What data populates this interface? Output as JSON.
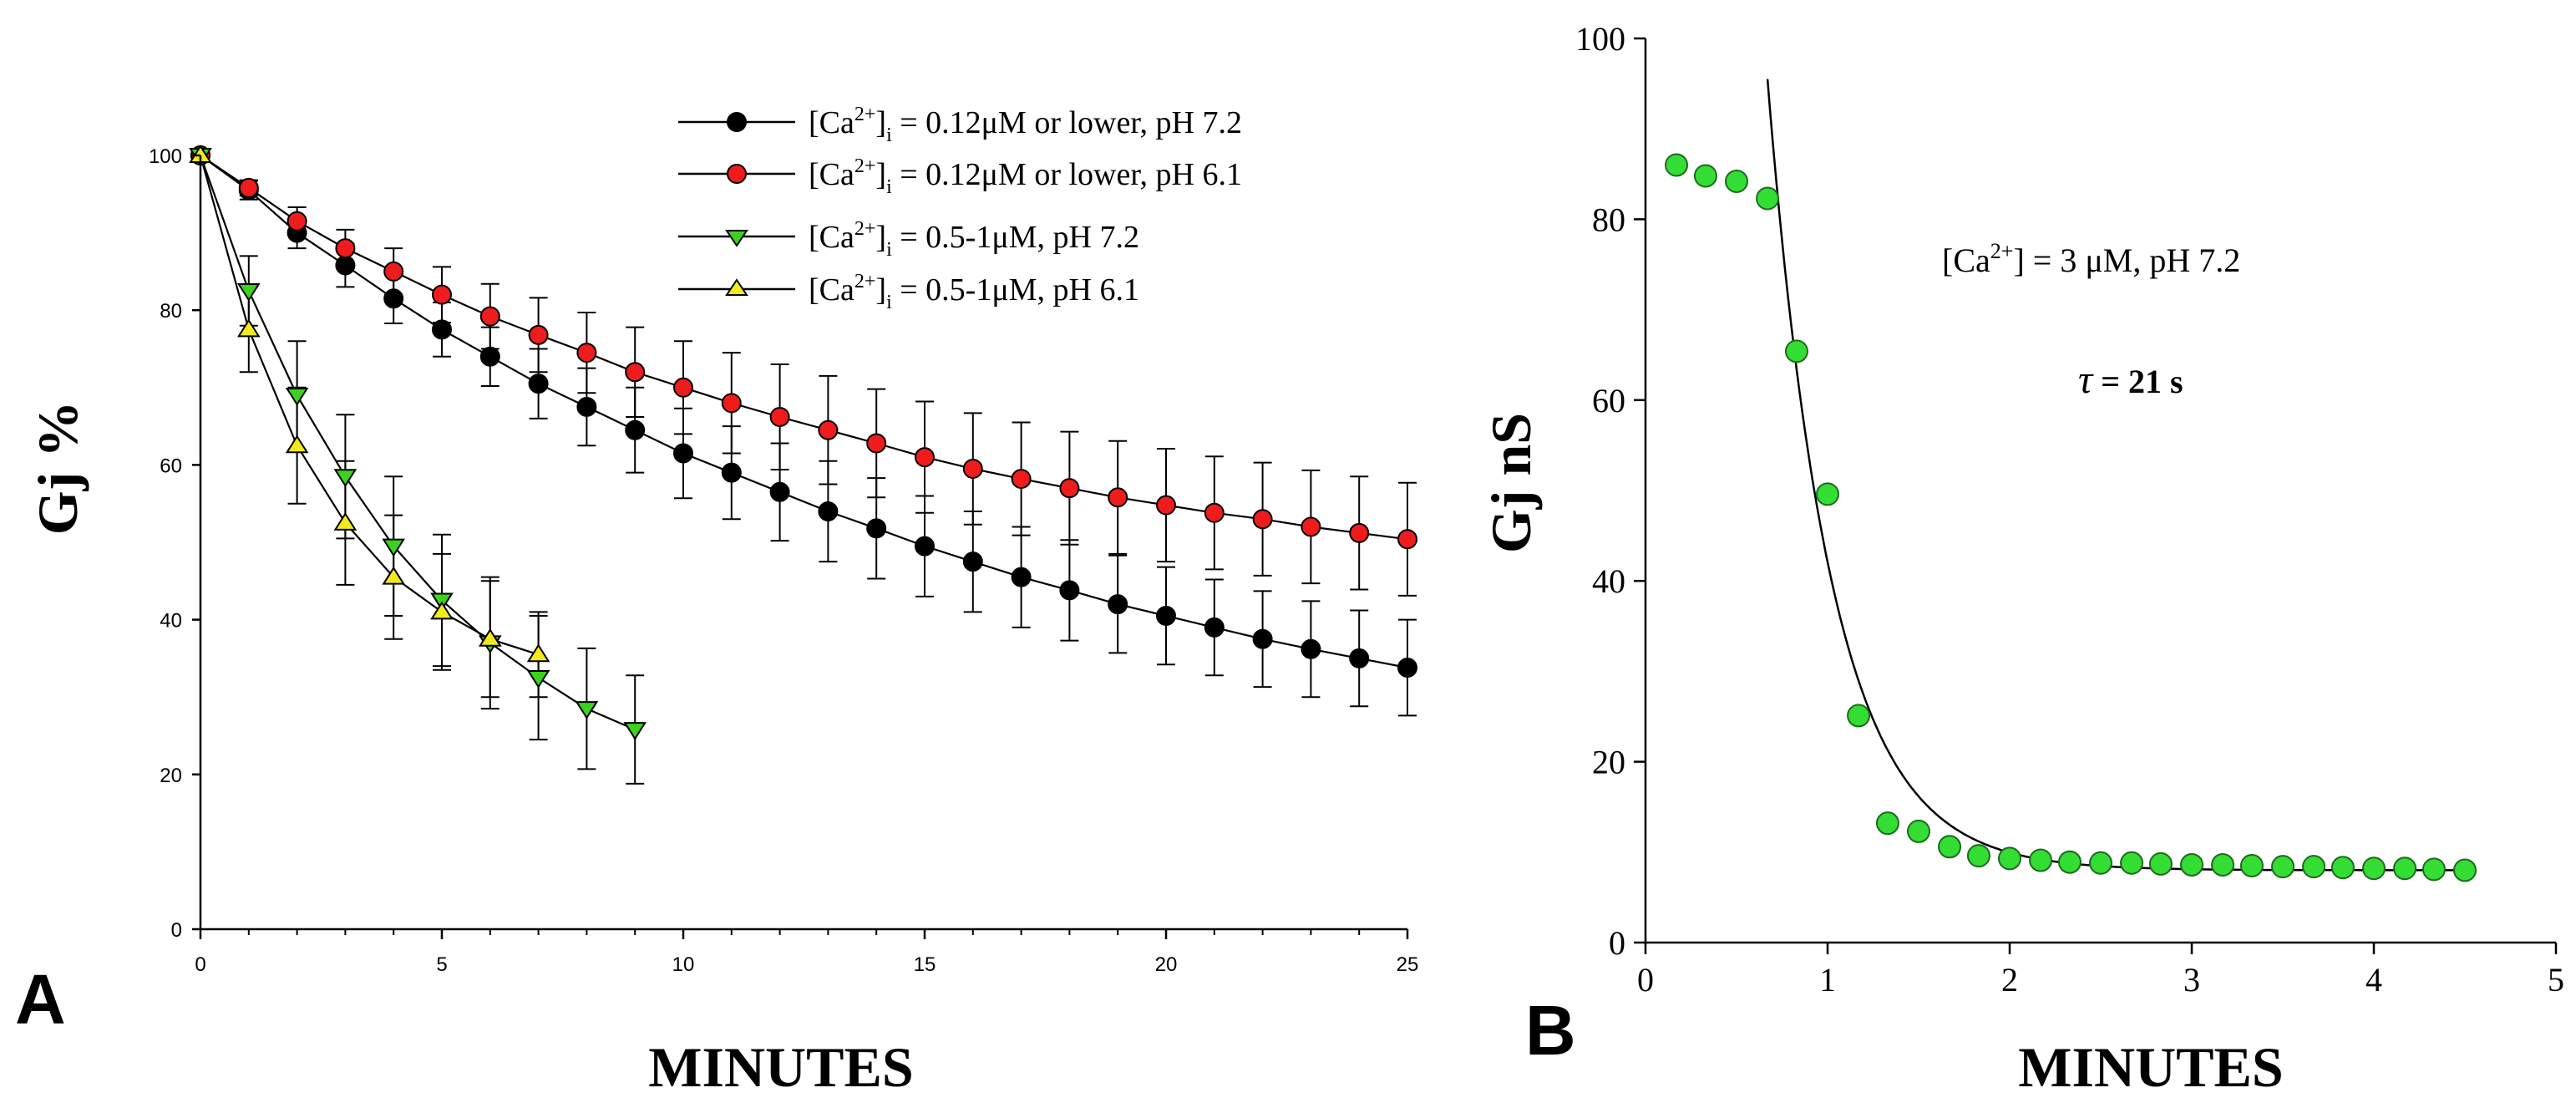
{
  "chart_data": [
    {
      "type": "line",
      "panel_label": "A",
      "xlabel": "MINUTES",
      "ylabel": "Gj %",
      "xlim": [
        0,
        25
      ],
      "ylim": [
        0,
        100
      ],
      "xticks": [
        0,
        5,
        10,
        15,
        20,
        25
      ],
      "yticks": [
        0,
        20,
        40,
        60,
        80,
        100
      ],
      "legend_position": "top-right",
      "series": [
        {
          "name": "[Ca2+]i = 0.12μM or lower, pH 7.2",
          "legend_main": "[Ca",
          "legend_sup": "2+",
          "legend_close": "]",
          "legend_sub": "i",
          "legend_rest": " = 0.12μM or lower, pH 7.2",
          "marker": "circle",
          "color": "#000000",
          "x": [
            0,
            1,
            2,
            3,
            4,
            5,
            6,
            7,
            8,
            9,
            10,
            11,
            12,
            13,
            14,
            15,
            16,
            17,
            18,
            19,
            20,
            21,
            22,
            23,
            24,
            25
          ],
          "y": [
            100,
            95.5,
            90,
            85.8,
            81.5,
            77.5,
            74,
            70.5,
            67.5,
            64.5,
            61.5,
            59,
            56.5,
            54,
            51.8,
            49.5,
            47.5,
            45.5,
            43.8,
            42,
            40.5,
            39,
            37.5,
            36.2,
            35,
            33.8
          ],
          "err": [
            0,
            1.2,
            2,
            2.8,
            3.2,
            3.5,
            3.8,
            4.5,
            5,
            5.5,
            5.8,
            6,
            6.3,
            6.5,
            6.5,
            6.5,
            6.5,
            6.5,
            6.5,
            6.3,
            6.3,
            6.2,
            6.2,
            6.2,
            6.2,
            6.2
          ]
        },
        {
          "name": "[Ca2+]i = 0.12μM or lower, pH 6.1",
          "legend_main": "[Ca",
          "legend_sup": "2+",
          "legend_close": "]",
          "legend_sub": "i",
          "legend_rest": " = 0.12μM or lower, pH 6.1",
          "marker": "circle",
          "color": "#ee1c1c",
          "x": [
            0,
            1,
            2,
            3,
            4,
            5,
            6,
            7,
            8,
            9,
            10,
            11,
            12,
            13,
            14,
            15,
            16,
            17,
            18,
            19,
            20,
            21,
            22,
            23,
            24,
            25
          ],
          "y": [
            100,
            95.8,
            91.5,
            88,
            85,
            82,
            79.2,
            76.8,
            74.5,
            72,
            70,
            68,
            66.2,
            64.5,
            62.8,
            61,
            59.5,
            58.2,
            57,
            55.8,
            54.8,
            53.8,
            53,
            52,
            51.2,
            50.4
          ],
          "err": [
            0,
            1,
            1.8,
            2.4,
            3,
            3.6,
            4.2,
            4.8,
            5.2,
            5.8,
            6,
            6.5,
            6.8,
            7,
            7,
            7.2,
            7.2,
            7.3,
            7.3,
            7.3,
            7.3,
            7.3,
            7.3,
            7.3,
            7.3,
            7.3
          ]
        },
        {
          "name": "[Ca2+]i = 0.5-1μM, pH 7.2",
          "legend_main": "[Ca",
          "legend_sup": "2+",
          "legend_close": "]",
          "legend_sub": "i",
          "legend_rest": " = 0.5-1μM, pH 7.2",
          "marker": "triangle-down",
          "color": "#3cd21e",
          "x": [
            0,
            1,
            2,
            3,
            4,
            5,
            6,
            7,
            8,
            9
          ],
          "y": [
            100,
            82.5,
            69,
            58.5,
            49.5,
            42.5,
            37,
            32.5,
            28.5,
            25.8
          ],
          "err": [
            0,
            4.5,
            7,
            8,
            9,
            8.5,
            8.5,
            8,
            7.8,
            7
          ]
        },
        {
          "name": "[Ca2+]i = 0.5-1μM, pH 6.1",
          "legend_main": "[Ca",
          "legend_sup": "2+",
          "legend_close": "]",
          "legend_sub": "i",
          "legend_rest": " = 0.5-1μM, pH 6.1",
          "marker": "triangle-up",
          "color": "#f2ea1e",
          "x": [
            0,
            1,
            2,
            3,
            4,
            5,
            6,
            7
          ],
          "y": [
            100,
            77.5,
            62.5,
            52.5,
            45.5,
            41,
            37.5,
            35.5
          ],
          "err": [
            0,
            5.5,
            7.5,
            8,
            8,
            7.5,
            7.5,
            5.5
          ]
        }
      ]
    },
    {
      "type": "scatter",
      "panel_label": "B",
      "xlabel": "MINUTES",
      "ylabel": "Gj nS",
      "xlim": [
        0,
        5
      ],
      "ylim": [
        0,
        100
      ],
      "xticks": [
        0,
        1,
        2,
        3,
        4,
        5
      ],
      "yticks": [
        0,
        20,
        40,
        60,
        80,
        100
      ],
      "annotation_condition_main": "[Ca",
      "annotation_condition_sup": "2+",
      "annotation_condition_rest": "] = 3 μM, pH 7.2",
      "annotation_tau_symbol": "τ",
      "annotation_tau_rest": " = 21 s",
      "points": {
        "marker": "circle",
        "color": "#33dd33",
        "x": [
          0.17,
          0.33,
          0.5,
          0.67,
          0.83,
          1.0,
          1.17,
          1.33,
          1.5,
          1.67,
          1.83,
          2.0,
          2.17,
          2.33,
          2.5,
          2.67,
          2.83,
          3.0,
          3.17,
          3.33,
          3.5,
          3.67,
          3.83,
          4.0,
          4.17,
          4.33,
          4.5
        ],
        "y": [
          86,
          84.8,
          84.2,
          82.3,
          65.4,
          49.6,
          25.1,
          13.2,
          12.3,
          10.6,
          9.6,
          9.3,
          9.1,
          8.9,
          8.8,
          8.8,
          8.7,
          8.6,
          8.6,
          8.5,
          8.4,
          8.4,
          8.3,
          8.2,
          8.2,
          8.1,
          8.0
        ]
      },
      "fit": {
        "model": "exponential decay",
        "tau_s": 21,
        "x_start": 0.67,
        "x_end": 4.5,
        "y_start": 95.5,
        "plateau": 8.0
      }
    }
  ]
}
